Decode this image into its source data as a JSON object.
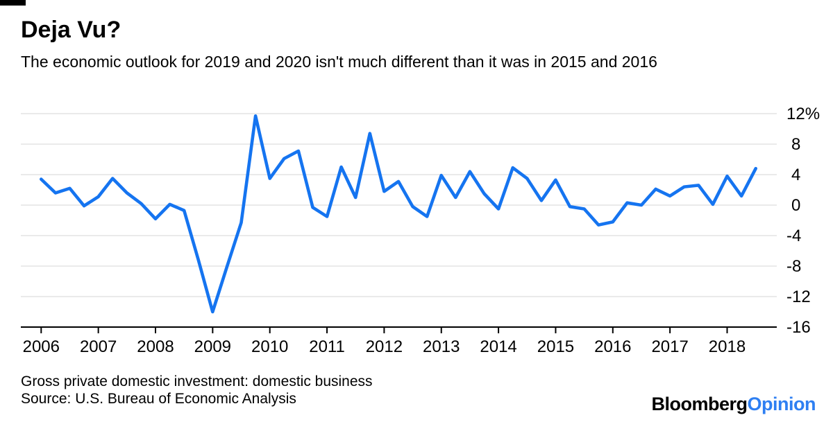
{
  "header": {
    "title": "Deja Vu?",
    "subtitle": "The economic outlook for 2019 and 2020 isn't much different than it was in 2015 and 2016"
  },
  "footer": {
    "note": "Gross private domestic investment: domestic business",
    "source": "Source: U.S. Bureau of Economic Analysis"
  },
  "brand": {
    "name_black": "Bloomberg",
    "name_blue": "Opinion"
  },
  "colors": {
    "line": "#1574f0",
    "grid": "#e4e4e4",
    "axis": "#000000",
    "text": "#000000",
    "brand_blue": "#2e7ff2",
    "topbar": "#000000"
  },
  "chart_data": {
    "type": "line",
    "title": "Deja Vu?",
    "series_label": "Gross private domestic investment: domestic business",
    "unit": "percent",
    "frequency": "quarterly",
    "start_period": "2006-Q1",
    "end_period": "2018-Q3",
    "values": [
      3.4,
      1.6,
      2.2,
      -0.1,
      1.1,
      3.5,
      1.6,
      0.2,
      -1.8,
      0.1,
      -0.7,
      -7.2,
      -14.0,
      -8.1,
      -2.3,
      11.7,
      3.5,
      6.1,
      7.1,
      -0.3,
      -1.5,
      5.0,
      1.0,
      9.4,
      1.8,
      3.1,
      -0.2,
      -1.5,
      3.9,
      1.0,
      4.4,
      1.5,
      -0.5,
      4.9,
      3.5,
      0.6,
      3.3,
      -0.2,
      -0.5,
      -2.6,
      -2.2,
      0.3,
      0.0,
      2.1,
      1.2,
      2.4,
      2.6,
      0.1,
      3.8,
      1.2,
      4.8
    ],
    "x_year_ticks": [
      "2006",
      "2007",
      "2008",
      "2009",
      "2010",
      "2011",
      "2012",
      "2013",
      "2014",
      "2015",
      "2016",
      "2017",
      "2018"
    ],
    "y_ticks": [
      12,
      8,
      4,
      0,
      -4,
      -8,
      -12,
      -16
    ],
    "y_tick_labels": [
      "12%",
      "8",
      "4",
      "0",
      "-4",
      "-8",
      "-12",
      "-16"
    ],
    "ylim": [
      -16,
      12
    ],
    "grid": "horizontal",
    "legend": "none"
  }
}
